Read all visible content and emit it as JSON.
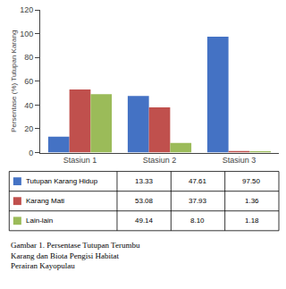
{
  "chart_data": {
    "type": "bar",
    "categories": [
      "Stasiun 1",
      "Stasiun 2",
      "Stasiun 3"
    ],
    "series": [
      {
        "name": "Tutupan Karang Hidup",
        "color": "#4472C4",
        "values": [
          13.33,
          47.61,
          97.5
        ],
        "value_labels": [
          "13.33",
          "47.61",
          "97.50"
        ]
      },
      {
        "name": "Karang Mati",
        "color": "#C0504D",
        "values": [
          53.08,
          37.93,
          1.36
        ],
        "value_labels": [
          "53.08",
          "37.93",
          "1.36"
        ]
      },
      {
        "name": "Lain-lain",
        "color": "#9BBB59",
        "values": [
          49.14,
          8.1,
          1.18
        ],
        "value_labels": [
          "49.14",
          "8.10",
          "1.18"
        ]
      }
    ],
    "y_label": "Persentase (%) Tutupan Karang",
    "ylim": [
      0,
      120
    ],
    "yticks": [
      0,
      20,
      40,
      60,
      80,
      100,
      120
    ],
    "grid": false,
    "annotations": [
      "Gambar 1. Persentase Tutupan Terumbu\nKarang dan Biota Pengisi Habitat\nPerairan Kayopulau"
    ]
  }
}
